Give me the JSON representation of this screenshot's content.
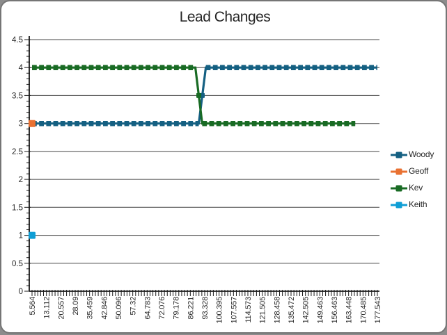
{
  "page": {
    "background_color": "#8c8c8c",
    "card_color": "#ffffff"
  },
  "chart_data": {
    "type": "line",
    "title": "Lead Changes",
    "grid": "horizontal",
    "x_axis": {
      "labels": [
        "5.564",
        "13.112",
        "20.557",
        "28.09",
        "35.459",
        "42.846",
        "50.096",
        "57.32",
        "64.783",
        "72.076",
        "79.178",
        "86.221",
        "93.328",
        "100.395",
        "107.557",
        "114.573",
        "121.505",
        "128.458",
        "135.472",
        "142.505",
        "149.463",
        "156.463",
        "163.448",
        "170.485",
        "177.543"
      ],
      "label_rotation_degrees": -90,
      "minor_ticks_per_label": 5
    },
    "y_axis": {
      "min": 0,
      "max": 4.5,
      "tick_interval": 0.5,
      "minor_tick_interval": 0.1,
      "tick_labels": [
        "0",
        "0.5",
        "1",
        "1.5",
        "2",
        "2.5",
        "3",
        "3.5",
        "4",
        "4.5"
      ]
    },
    "legend": {
      "position": "right",
      "entries": [
        "Woody",
        "Geoff",
        "Kev",
        "Keith"
      ]
    },
    "series": [
      {
        "name": "Woody",
        "color": "#156082",
        "style": "dashed-square-markers",
        "points": [
          [
            5.564,
            3
          ],
          [
            88.6,
            3
          ],
          [
            92.1,
            4
          ],
          [
            177.5,
            4
          ]
        ]
      },
      {
        "name": "Geoff",
        "color": "#E97132",
        "style": "single-square-marker",
        "points": [
          [
            5.564,
            3
          ]
        ]
      },
      {
        "name": "Kev",
        "color": "#196B24",
        "style": "dashed-square-markers",
        "points": [
          [
            5.564,
            4
          ],
          [
            86.9,
            4
          ],
          [
            90.3,
            3
          ],
          [
            166.5,
            3
          ]
        ]
      },
      {
        "name": "Keith",
        "color": "#0F9ED5",
        "style": "single-square-marker",
        "points": [
          [
            5.564,
            1
          ]
        ]
      }
    ]
  }
}
